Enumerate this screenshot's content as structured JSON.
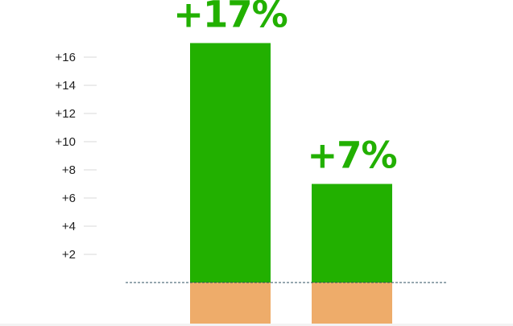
{
  "chart_data": {
    "type": "bar",
    "categories": [
      "",
      ""
    ],
    "values": [
      17,
      7
    ],
    "data_labels": [
      "+17%",
      "+7%"
    ],
    "yticks": [
      2,
      4,
      6,
      8,
      10,
      12,
      14,
      16
    ],
    "ytick_labels": [
      "+2",
      "+4",
      "+6",
      "+8",
      "+10",
      "+12",
      "+14",
      "+16"
    ],
    "ylim": [
      0,
      17
    ],
    "grid": false,
    "baseline": 0,
    "title": "",
    "xlabel": "",
    "ylabel": ""
  },
  "colors": {
    "bar_positive": "#22b000",
    "bar_below_baseline": "#eeac6a",
    "label": "#22b000",
    "baseline": "#2f5060",
    "tick_mark": "#d9d9d9",
    "tick_text": "#1f1f1f"
  }
}
